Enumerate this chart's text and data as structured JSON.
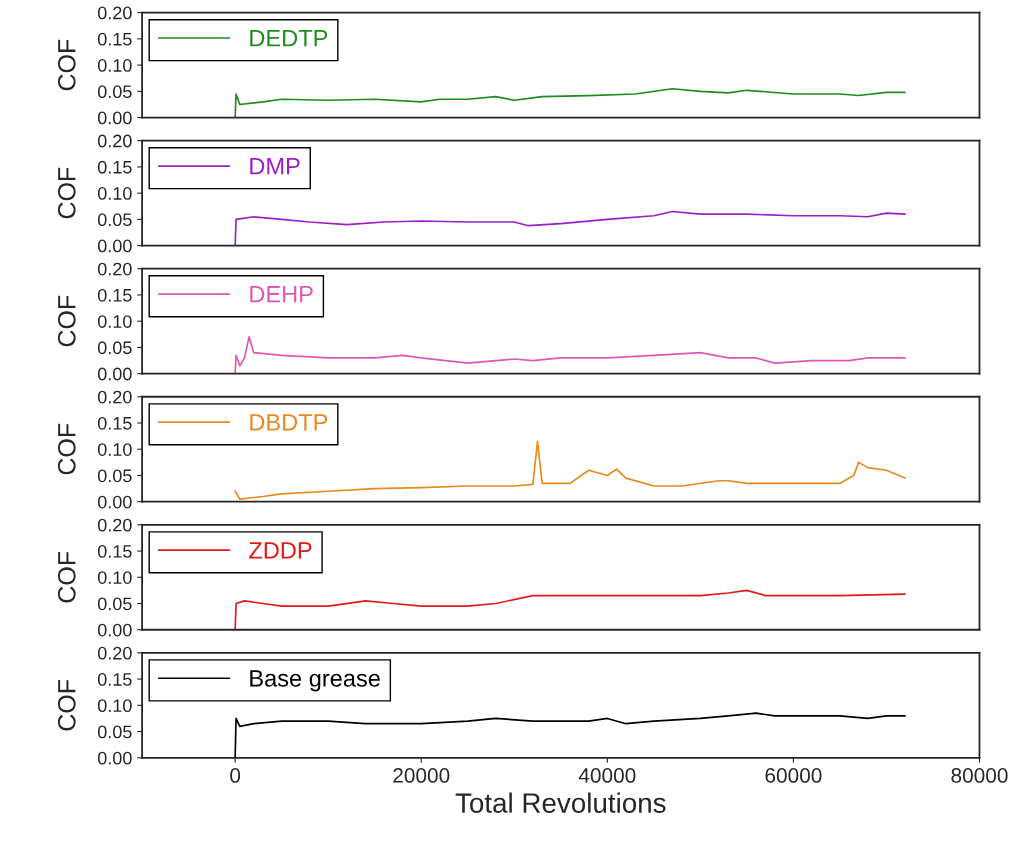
{
  "chart_data": [
    {
      "type": "line",
      "ylabel": "COF",
      "ylim": [
        0,
        0.2
      ],
      "yticks": [
        {
          "value": 0,
          "label": "0.00"
        },
        {
          "value": 0.05,
          "label": "0.05"
        },
        {
          "value": 0.1,
          "label": "0.10"
        },
        {
          "value": 0.15,
          "label": "0.15"
        },
        {
          "value": 0.2,
          "label": "0.20"
        }
      ],
      "xlim": [
        -10000,
        80000
      ],
      "tick_labels": "y",
      "legend": "top left",
      "series": [
        {
          "name": "DEDTP",
          "color": "#1e8c1e",
          "x": [
            0,
            100,
            500,
            3000,
            5000,
            10000,
            15000,
            20000,
            22000,
            25000,
            28000,
            30000,
            33000,
            38000,
            43000,
            47000,
            50000,
            53000,
            55000,
            60000,
            65000,
            67000,
            70000,
            72000
          ],
          "values": [
            0.0,
            0.045,
            0.025,
            0.03,
            0.035,
            0.033,
            0.035,
            0.03,
            0.035,
            0.035,
            0.04,
            0.033,
            0.04,
            0.042,
            0.045,
            0.055,
            0.05,
            0.047,
            0.052,
            0.045,
            0.045,
            0.042,
            0.048,
            0.048
          ]
        }
      ]
    },
    {
      "type": "line",
      "ylabel": "COF",
      "ylim": [
        0,
        0.2
      ],
      "yticks": [
        {
          "value": 0,
          "label": "0.00"
        },
        {
          "value": 0.05,
          "label": "0.05"
        },
        {
          "value": 0.1,
          "label": "0.10"
        },
        {
          "value": 0.15,
          "label": "0.15"
        },
        {
          "value": 0.2,
          "label": "0.20"
        }
      ],
      "xlim": [
        -10000,
        80000
      ],
      "tick_labels": "y",
      "legend": "top left",
      "series": [
        {
          "name": "DMP",
          "color": "#9b1fc6",
          "x": [
            0,
            100,
            2000,
            5000,
            8000,
            12000,
            16000,
            20000,
            25000,
            30000,
            31500,
            35000,
            40000,
            45000,
            47000,
            50000,
            55000,
            60000,
            65000,
            68000,
            70000,
            72000
          ],
          "values": [
            0.0,
            0.05,
            0.055,
            0.05,
            0.045,
            0.04,
            0.045,
            0.047,
            0.045,
            0.045,
            0.038,
            0.042,
            0.05,
            0.057,
            0.065,
            0.06,
            0.06,
            0.057,
            0.057,
            0.055,
            0.062,
            0.06
          ]
        }
      ]
    },
    {
      "type": "line",
      "ylabel": "COF",
      "ylim": [
        0,
        0.2
      ],
      "yticks": [
        {
          "value": 0,
          "label": "0.00"
        },
        {
          "value": 0.05,
          "label": "0.05"
        },
        {
          "value": 0.1,
          "label": "0.10"
        },
        {
          "value": 0.15,
          "label": "0.15"
        },
        {
          "value": 0.2,
          "label": "0.20"
        }
      ],
      "xlim": [
        -10000,
        80000
      ],
      "tick_labels": "y",
      "legend": "top left",
      "series": [
        {
          "name": "DEHP",
          "color": "#e356b8",
          "x": [
            0,
            100,
            500,
            1000,
            1500,
            2000,
            5000,
            10000,
            15000,
            18000,
            20000,
            25000,
            30000,
            32000,
            35000,
            40000,
            45000,
            50000,
            53000,
            56000,
            58000,
            62000,
            66000,
            68000,
            72000
          ],
          "values": [
            0.0,
            0.035,
            0.015,
            0.03,
            0.07,
            0.04,
            0.035,
            0.03,
            0.03,
            0.035,
            0.03,
            0.02,
            0.028,
            0.025,
            0.03,
            0.03,
            0.035,
            0.04,
            0.03,
            0.03,
            0.02,
            0.025,
            0.025,
            0.03,
            0.03
          ]
        }
      ]
    },
    {
      "type": "line",
      "ylabel": "COF",
      "ylim": [
        0,
        0.2
      ],
      "yticks": [
        {
          "value": 0,
          "label": "0.00"
        },
        {
          "value": 0.05,
          "label": "0.05"
        },
        {
          "value": 0.1,
          "label": "0.10"
        },
        {
          "value": 0.15,
          "label": "0.15"
        },
        {
          "value": 0.2,
          "label": "0.20"
        }
      ],
      "xlim": [
        -10000,
        80000
      ],
      "tick_labels": "y",
      "legend": "top left",
      "series": [
        {
          "name": "DBDTP",
          "color": "#e8891c",
          "x": [
            0,
            500,
            3000,
            5000,
            10000,
            15000,
            20000,
            25000,
            30000,
            32000,
            32500,
            33000,
            36000,
            38000,
            40000,
            41000,
            42000,
            45000,
            48000,
            52000,
            53000,
            55000,
            60000,
            65000,
            66500,
            67000,
            68000,
            70000,
            72000
          ],
          "values": [
            0.02,
            0.005,
            0.01,
            0.015,
            0.02,
            0.025,
            0.027,
            0.03,
            0.03,
            0.033,
            0.115,
            0.035,
            0.035,
            0.06,
            0.05,
            0.062,
            0.045,
            0.03,
            0.03,
            0.04,
            0.04,
            0.035,
            0.035,
            0.035,
            0.05,
            0.075,
            0.065,
            0.06,
            0.045
          ]
        }
      ]
    },
    {
      "type": "line",
      "ylabel": "COF",
      "ylim": [
        0,
        0.2
      ],
      "yticks": [
        {
          "value": 0,
          "label": "0.00"
        },
        {
          "value": 0.05,
          "label": "0.05"
        },
        {
          "value": 0.1,
          "label": "0.10"
        },
        {
          "value": 0.15,
          "label": "0.15"
        },
        {
          "value": 0.2,
          "label": "0.20"
        }
      ],
      "xlim": [
        -10000,
        80000
      ],
      "tick_labels": "y",
      "legend": "top left",
      "series": [
        {
          "name": "ZDDP",
          "color": "#e31a1c",
          "x": [
            0,
            100,
            1000,
            5000,
            10000,
            14000,
            17000,
            20000,
            25000,
            28000,
            32000,
            40000,
            45000,
            50000,
            53000,
            55000,
            57000,
            60000,
            65000,
            72000
          ],
          "values": [
            0.0,
            0.05,
            0.055,
            0.045,
            0.045,
            0.055,
            0.05,
            0.045,
            0.045,
            0.05,
            0.065,
            0.065,
            0.065,
            0.065,
            0.07,
            0.075,
            0.065,
            0.065,
            0.065,
            0.068
          ]
        }
      ]
    },
    {
      "type": "line",
      "ylabel": "COF",
      "xlabel": "Total Revolutions",
      "ylim": [
        0,
        0.2
      ],
      "yticks": [
        {
          "value": 0,
          "label": "0.00"
        },
        {
          "value": 0.05,
          "label": "0.05"
        },
        {
          "value": 0.1,
          "label": "0.10"
        },
        {
          "value": 0.15,
          "label": "0.15"
        },
        {
          "value": 0.2,
          "label": "0.20"
        }
      ],
      "xlim": [
        -10000,
        80000
      ],
      "xticks": [
        0,
        20000,
        40000,
        60000,
        80000
      ],
      "legend": "top left",
      "series": [
        {
          "name": "Base grease",
          "color": "#000000",
          "x": [
            0,
            100,
            500,
            2000,
            5000,
            10000,
            14000,
            20000,
            25000,
            28000,
            32000,
            38000,
            40000,
            42000,
            45000,
            50000,
            53000,
            56000,
            58000,
            62000,
            65000,
            68000,
            70000,
            72000
          ],
          "values": [
            0.0,
            0.075,
            0.06,
            0.065,
            0.07,
            0.07,
            0.065,
            0.065,
            0.07,
            0.075,
            0.07,
            0.07,
            0.075,
            0.065,
            0.07,
            0.075,
            0.08,
            0.085,
            0.08,
            0.08,
            0.08,
            0.075,
            0.08,
            0.08
          ]
        }
      ]
    }
  ]
}
